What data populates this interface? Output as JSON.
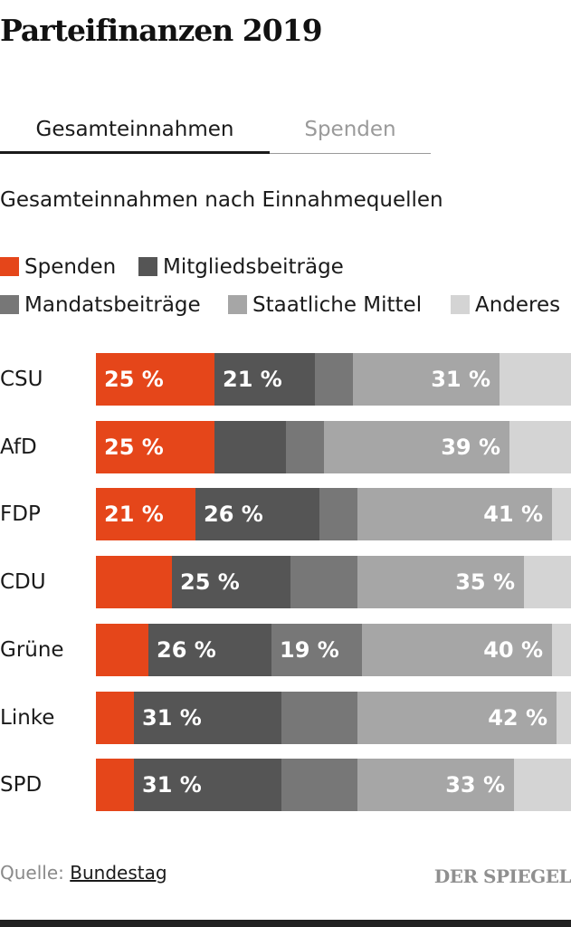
{
  "title": "Parteifinanzen 2019",
  "tabs": [
    {
      "label": "Gesamteinnahmen",
      "active": true
    },
    {
      "label": "Spenden",
      "active": false
    }
  ],
  "subtitle": "Gesamteinnahmen nach Einnahmequellen",
  "colors": {
    "Spenden": "#e5461a",
    "Mitgliedsbeiträge": "#555555",
    "Mandatsbeiträge": "#777777",
    "Staatliche Mittel": "#a6a6a6",
    "Anderes": "#d4d4d4"
  },
  "chart_data": {
    "type": "bar",
    "orientation": "horizontal",
    "stacked": true,
    "unit": "%",
    "legend_position": "top",
    "categories": [
      "CSU",
      "AfD",
      "FDP",
      "CDU",
      "Grüne",
      "Linke",
      "SPD"
    ],
    "series": [
      {
        "name": "Spenden",
        "values": [
          25,
          25,
          21,
          16,
          11,
          8,
          8
        ],
        "labels": [
          "25 %",
          "25 %",
          "21 %",
          "",
          "",
          "",
          ""
        ]
      },
      {
        "name": "Mitgliedsbeiträge",
        "values": [
          21,
          15,
          26,
          25,
          26,
          31,
          31
        ],
        "labels": [
          "21 %",
          "",
          "26 %",
          "25 %",
          "26 %",
          "31 %",
          "31 %"
        ]
      },
      {
        "name": "Mandatsbeiträge",
        "values": [
          8,
          8,
          8,
          14,
          19,
          16,
          16
        ],
        "labels": [
          "",
          "",
          "",
          "",
          "19 %",
          "",
          ""
        ]
      },
      {
        "name": "Staatliche Mittel",
        "values": [
          31,
          39,
          41,
          35,
          40,
          42,
          33
        ],
        "labels": [
          "31 %",
          "39 %",
          "41 %",
          "35 %",
          "40 %",
          "42 %",
          "33 %"
        ]
      },
      {
        "name": "Anderes",
        "values": [
          15,
          13,
          4,
          10,
          4,
          3,
          12
        ],
        "labels": [
          "",
          "",
          "",
          "",
          "",
          "",
          ""
        ]
      }
    ]
  },
  "source": {
    "prefix": "Quelle:",
    "link": "Bundestag"
  },
  "brand": "DER SPIEGEL"
}
